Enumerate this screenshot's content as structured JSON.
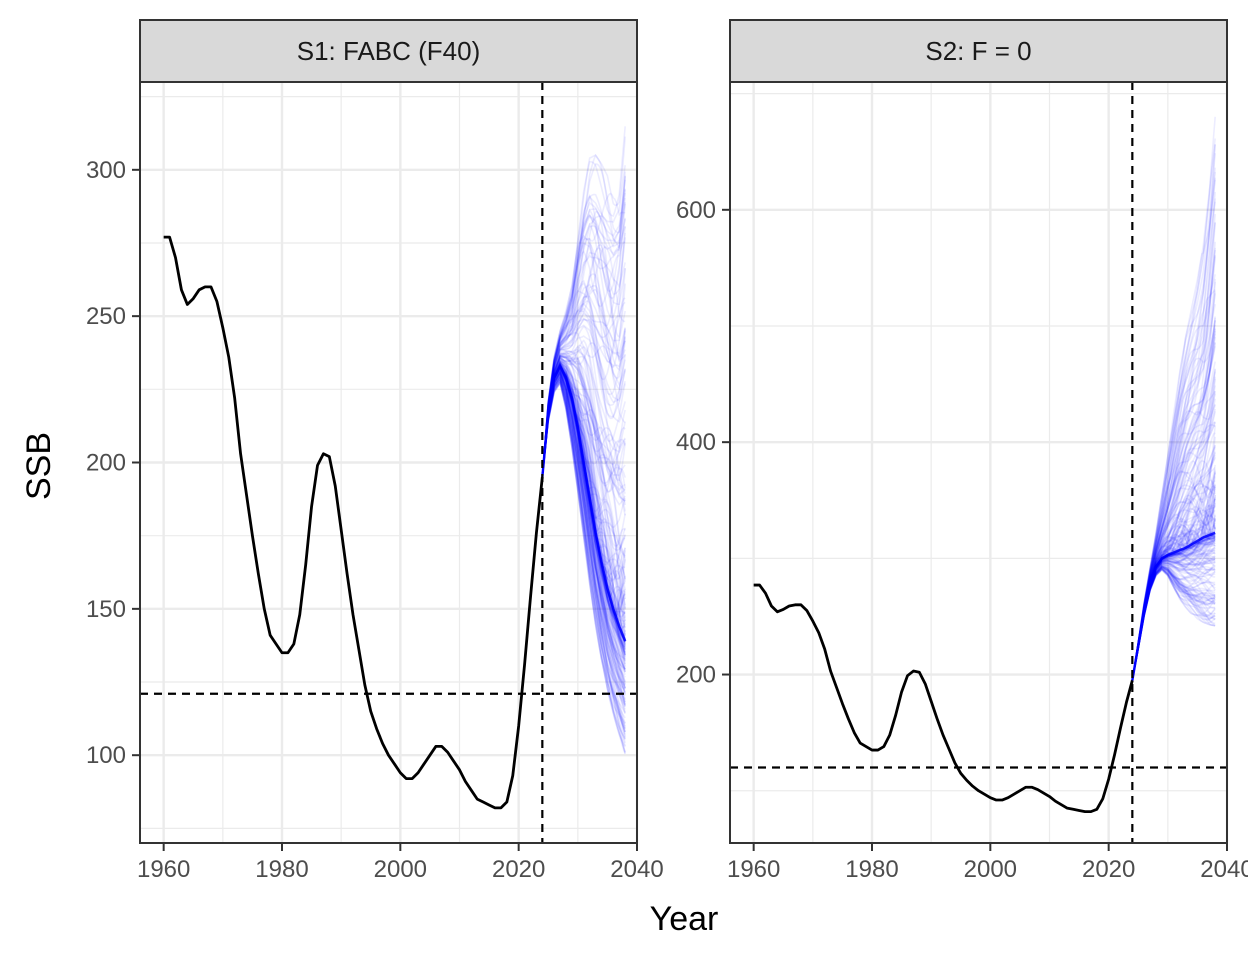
{
  "chart_data": {
    "type": "line",
    "xlabel": "Year",
    "ylabel": "SSB",
    "grid": true,
    "legend": "none",
    "colors": {
      "history": "#000000",
      "projection": "#0000ff",
      "reference": "#000000",
      "strip_bg": "#d9d9d9",
      "grid": "#ebebeb",
      "border": "#333333"
    },
    "projection_start_year": 2024,
    "projection_end_year": 2038,
    "panels": [
      {
        "title": "S1: FABC (F40)",
        "xlim": [
          1956,
          2040
        ],
        "ylim": [
          70,
          330
        ],
        "xticks": [
          1960,
          1980,
          2000,
          2020,
          2040
        ],
        "yticks": [
          100,
          150,
          200,
          250,
          300
        ],
        "vline_x": 2024,
        "hline_y": 121,
        "history": {
          "x": [
            1960,
            1961,
            1962,
            1963,
            1964,
            1965,
            1966,
            1967,
            1968,
            1969,
            1970,
            1971,
            1972,
            1973,
            1974,
            1975,
            1976,
            1977,
            1978,
            1979,
            1980,
            1981,
            1982,
            1983,
            1984,
            1985,
            1986,
            1987,
            1988,
            1989,
            1990,
            1991,
            1992,
            1993,
            1994,
            1995,
            1996,
            1997,
            1998,
            1999,
            2000,
            2001,
            2002,
            2003,
            2004,
            2005,
            2006,
            2007,
            2008,
            2009,
            2010,
            2011,
            2012,
            2013,
            2014,
            2015,
            2016,
            2017,
            2018,
            2019,
            2020,
            2021,
            2022,
            2023,
            2024
          ],
          "y": [
            277,
            277,
            270,
            259,
            254,
            256,
            259,
            260,
            260,
            255,
            246,
            236,
            222,
            203,
            189,
            175,
            162,
            150,
            141,
            138,
            135,
            135,
            138,
            148,
            165,
            185,
            199,
            203,
            202,
            192,
            177,
            162,
            148,
            136,
            124,
            115,
            109,
            104,
            100,
            97,
            94,
            92,
            92,
            94,
            97,
            100,
            103,
            103,
            101,
            98,
            95,
            91,
            88,
            85,
            84,
            83,
            82,
            82,
            84,
            93,
            110,
            131,
            154,
            176,
            195
          ]
        },
        "projection": {
          "x": [
            2024,
            2025,
            2026,
            2027,
            2028,
            2029,
            2030,
            2031,
            2032,
            2033,
            2034,
            2035,
            2036,
            2037,
            2038
          ],
          "median": [
            195,
            217,
            229,
            233,
            229,
            222,
            212,
            200,
            188,
            176,
            166,
            157,
            150,
            144,
            139
          ],
          "lower": [
            195,
            214,
            224,
            227,
            218,
            205,
            190,
            174,
            158,
            144,
            132,
            122,
            114,
            107,
            100
          ],
          "upper": [
            195,
            221,
            236,
            245,
            252,
            262,
            280,
            295,
            304,
            305,
            302,
            298,
            296,
            300,
            319
          ]
        }
      },
      {
        "title": "S2: F = 0",
        "xlim": [
          1956,
          2040
        ],
        "ylim": [
          55,
          710
        ],
        "xticks": [
          1960,
          1980,
          2000,
          2020,
          2040
        ],
        "yticks": [
          200,
          400,
          600
        ],
        "vline_x": 2024,
        "hline_y": 120,
        "history": {
          "x": [
            1960,
            1961,
            1962,
            1963,
            1964,
            1965,
            1966,
            1967,
            1968,
            1969,
            1970,
            1971,
            1972,
            1973,
            1974,
            1975,
            1976,
            1977,
            1978,
            1979,
            1980,
            1981,
            1982,
            1983,
            1984,
            1985,
            1986,
            1987,
            1988,
            1989,
            1990,
            1991,
            1992,
            1993,
            1994,
            1995,
            1996,
            1997,
            1998,
            1999,
            2000,
            2001,
            2002,
            2003,
            2004,
            2005,
            2006,
            2007,
            2008,
            2009,
            2010,
            2011,
            2012,
            2013,
            2014,
            2015,
            2016,
            2017,
            2018,
            2019,
            2020,
            2021,
            2022,
            2023,
            2024
          ],
          "y": [
            277,
            277,
            270,
            259,
            254,
            256,
            259,
            260,
            260,
            255,
            246,
            236,
            222,
            203,
            189,
            175,
            162,
            150,
            141,
            138,
            135,
            135,
            138,
            148,
            165,
            185,
            199,
            203,
            202,
            192,
            177,
            162,
            148,
            136,
            124,
            115,
            109,
            104,
            100,
            97,
            94,
            92,
            92,
            94,
            97,
            100,
            103,
            103,
            101,
            98,
            95,
            91,
            88,
            85,
            84,
            83,
            82,
            82,
            84,
            93,
            110,
            131,
            154,
            176,
            195
          ]
        },
        "projection": {
          "x": [
            2024,
            2025,
            2026,
            2027,
            2028,
            2029,
            2030,
            2031,
            2032,
            2033,
            2034,
            2035,
            2036,
            2037,
            2038
          ],
          "median": [
            195,
            225,
            255,
            278,
            293,
            300,
            303,
            305,
            307,
            309,
            312,
            315,
            318,
            320,
            322
          ],
          "lower": [
            195,
            222,
            250,
            272,
            285,
            290,
            285,
            275,
            265,
            258,
            252,
            248,
            245,
            243,
            242
          ],
          "upper": [
            195,
            228,
            262,
            292,
            322,
            355,
            390,
            425,
            460,
            490,
            515,
            540,
            570,
            620,
            680
          ]
        }
      }
    ]
  }
}
